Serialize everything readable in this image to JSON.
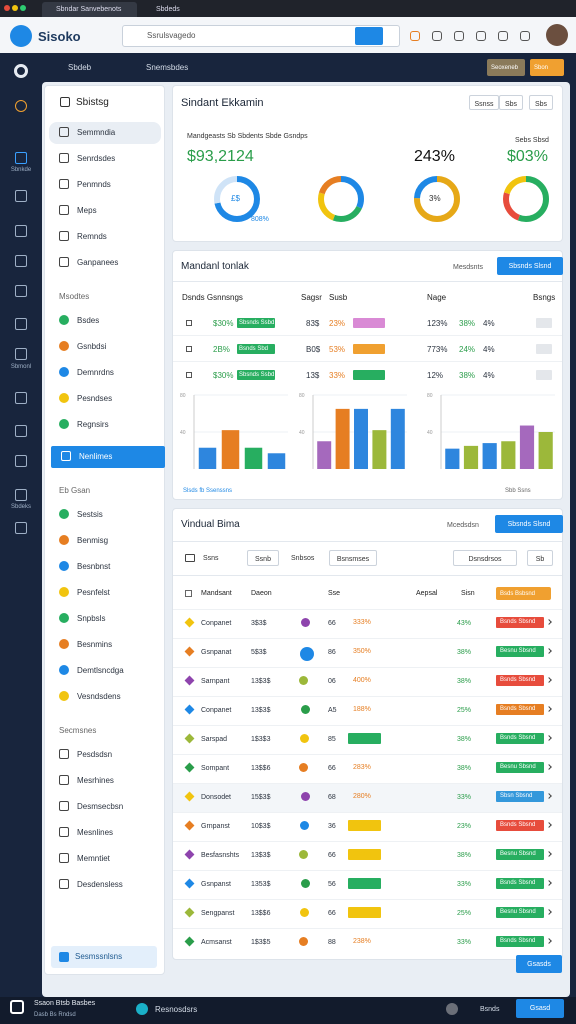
{
  "browser": {
    "tabs": [
      "Sbndar Sanvebenots",
      "Sbdeds"
    ]
  },
  "topbar": {
    "logo": "Sisoko",
    "search": "Ssrulsvagedo"
  },
  "appbar": {
    "menus": [
      "Sbdeb",
      "Snemsbdes"
    ],
    "buttons": [
      "Seoxeneb",
      "Sbon"
    ]
  },
  "rail": {
    "labels": [
      "Sbnkde",
      "Sbmonl",
      "Sbdeks"
    ]
  },
  "sidebar": {
    "title": "Sbistsg",
    "sections": [
      {
        "items": [
          "Semmndia",
          "Senrdsdes",
          "Penmnds",
          "Meps",
          "Remnds",
          "Ganpanees"
        ]
      },
      {
        "heading": "Msodtes",
        "items": [
          "Bsdes",
          "Gsnbdsi",
          "Demnrdns",
          "Pesndses",
          "Regnsirs"
        ]
      },
      {
        "items": [
          "Nenlimes"
        ],
        "highlight": true
      },
      {
        "heading": "Eb Gsan",
        "items": [
          "Sestsis",
          "Benmisg",
          "Besnbnst",
          "Pesnfelst",
          "Snpbsls",
          "Besnmins",
          "Demtlsncdga",
          "Vesndsdens"
        ]
      },
      {
        "heading": "Secmsnes",
        "items": [
          "Pesdsdsn",
          "Mesrhines",
          "Desmsecbsn",
          "Mesnlines",
          "Memntiet",
          "Desdensless"
        ]
      }
    ],
    "footer": "Sesmssnlsns"
  },
  "overview": {
    "title": "Sindant Ekkamin",
    "buttons": [
      "Ssnss",
      "Sbs",
      "Sbs"
    ],
    "caption": "Mandgeasts Sb Sbdents Sbde Gsndps",
    "caption2": "Sebs Sbsd",
    "kpis": [
      "$93,2124",
      "243%",
      "$03%"
    ],
    "donut_labels": [
      "£$",
      "3%"
    ],
    "donut_sub": "808%"
  },
  "tracker": {
    "title": "Mandanl tonlak",
    "link": "Mesdsnts",
    "button": "Sbsnds Slsnd",
    "columns": [
      "Dsnds Gsnnsngs",
      "Sagsr",
      "Susb",
      "Nage",
      "Bsngs"
    ],
    "rows": [
      {
        "a": "$30%",
        "tag": "Sbsnds Ssbd",
        "b": "83$",
        "c": "23%",
        "d": "123%",
        "e": "38%",
        "f": "4%"
      },
      {
        "a": "2B%",
        "tag": "Bsnds Sbd",
        "b": "B0$",
        "c": "53%",
        "d": "773%",
        "e": "24%",
        "f": "4%"
      },
      {
        "a": "$30%",
        "tag": "Sbsnds Ssbd",
        "b": "13$",
        "c": "33%",
        "d": "12%",
        "e": "38%",
        "f": "4%"
      }
    ],
    "charts": [
      {
        "ylim": [
          0,
          80
        ],
        "yticks": [
          40,
          80
        ],
        "values": [
          23,
          42,
          23,
          17
        ],
        "colors": [
          "#2e86de",
          "#e67e22",
          "#27ae60",
          "#2e86de"
        ]
      },
      {
        "ylim": [
          0,
          80
        ],
        "yticks": [
          40,
          80
        ],
        "values": [
          30,
          65,
          65,
          42,
          65
        ],
        "colors": [
          "#a569bd",
          "#e67e22",
          "#2e86de",
          "#9cb83a",
          "#2e86de"
        ]
      },
      {
        "ylim": [
          0,
          80
        ],
        "yticks": [
          40,
          80
        ],
        "values": [
          22,
          25,
          28,
          30,
          47,
          40
        ],
        "colors": [
          "#2e86de",
          "#9cb83a",
          "#2e86de",
          "#9cb83a",
          "#a569bd",
          "#9cb83a"
        ]
      }
    ],
    "footer": [
      "Slsds fb Ssenssns",
      "Sbb Ssns"
    ]
  },
  "clients": {
    "title": "Vindual Bima",
    "link": "Mcedsdsn",
    "button": "Sbsnds Slsnd",
    "filters": [
      "Ssns",
      "Ssnb",
      "Snbsos",
      "Bsnsmses",
      "Dsnsdrsos",
      "Sb"
    ],
    "columns": [
      "Mandsant",
      "Daeon",
      "Sse",
      "Aepsal",
      "Sisn"
    ],
    "header_tag": "Bsds Bsbsnd",
    "rows": [
      {
        "name": "Conpanet",
        "num": "3$3$",
        "sc": "66",
        "pct": "333%",
        "pct_bg": "transparent",
        "share": "43%",
        "status": "Bsnds Sbsnd",
        "status_color": "#e74c3c"
      },
      {
        "name": "Gsnpanat",
        "num": "5$3$",
        "sc": "86",
        "pct": "350%",
        "pct_bg": "transparent",
        "share": "38%",
        "status": "Besnu Sbsnd",
        "status_color": "#27ae60"
      },
      {
        "name": "Sarnpant",
        "num": "13$3$",
        "sc": "06",
        "pct": "400%",
        "pct_bg": "transparent",
        "share": "38%",
        "status": "Bsnds Sbsnd",
        "status_color": "#e74c3c"
      },
      {
        "name": "Conpanet",
        "num": "13$3$",
        "sc": "A5",
        "pct": "188%",
        "pct_bg": "transparent",
        "share": "25%",
        "status": "Bsnds Sbsnd",
        "status_color": "#e67e22"
      },
      {
        "name": "Sarspad",
        "num": "1$3$3",
        "sc": "85",
        "pct": "358%",
        "pct_bg": "#27ae60",
        "share": "38%",
        "status": "Bsnds Sbsnd",
        "status_color": "#27ae60"
      },
      {
        "name": "Sompant",
        "num": "13$$6",
        "sc": "66",
        "pct": "283%",
        "pct_bg": "transparent",
        "share": "38%",
        "status": "Besnu Sbsnd",
        "status_color": "#27ae60"
      },
      {
        "name": "Donsodet",
        "num": "15$3$",
        "sc": "68",
        "pct": "280%",
        "pct_bg": "transparent",
        "share": "33%",
        "status": "Sbsn Sbsnd",
        "status_color": "#3498db"
      },
      {
        "name": "Grnpanst",
        "num": "10$3$",
        "sc": "36",
        "pct": "230%",
        "pct_bg": "#f1c40f",
        "share": "23%",
        "status": "Bsnds Sbsnd",
        "status_color": "#e74c3c"
      },
      {
        "name": "Besfasnshts",
        "num": "13$3$",
        "sc": "66",
        "pct": "233%",
        "pct_bg": "#f1c40f",
        "share": "38%",
        "status": "Besnu Sbsnd",
        "status_color": "#27ae60"
      },
      {
        "name": "Gsnpanst",
        "num": "1353$",
        "sc": "56",
        "pct": "335%",
        "pct_bg": "#27ae60",
        "share": "33%",
        "status": "Bsnds Sbsnd",
        "status_color": "#27ae60"
      },
      {
        "name": "Sengpanst",
        "num": "13$$6",
        "sc": "66",
        "pct": "238%",
        "pct_bg": "#f1c40f",
        "share": "25%",
        "status": "Besnu Sbsnd",
        "status_color": "#27ae60"
      },
      {
        "name": "Acmsanst",
        "num": "1$3$5",
        "sc": "88",
        "pct": "238%",
        "pct_bg": "transparent",
        "share": "33%",
        "status": "Bsnds Sbsnd",
        "status_color": "#27ae60"
      }
    ],
    "more": "Gsasds"
  },
  "bottombar": {
    "title": "Ssaon Btsb Basbes",
    "subtitle": "Dasb Bs Rndsd",
    "center": "Resnosdsrs",
    "right": "Bsnds",
    "button": "Gsasd"
  }
}
